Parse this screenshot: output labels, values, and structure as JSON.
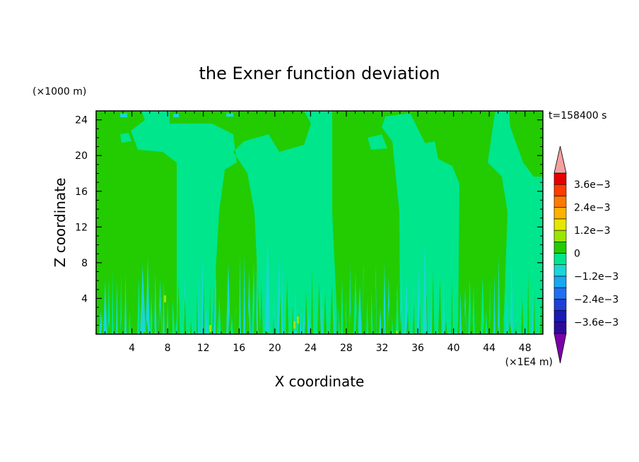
{
  "chart_data": {
    "type": "heatmap",
    "title": "the Exner function deviation",
    "xlabel": "X coordinate",
    "ylabel": "Z coordinate",
    "x_units": "(×1E4 m)",
    "y_units": "(×1000 m)",
    "time_label": "t=158400 s",
    "xlim": [
      0,
      50
    ],
    "ylim": [
      0,
      25
    ],
    "x_ticks": [
      4,
      8,
      12,
      16,
      20,
      24,
      28,
      32,
      36,
      40,
      44,
      48
    ],
    "y_ticks": [
      4,
      8,
      12,
      16,
      20,
      24
    ],
    "colorbar": {
      "levels": [
        -0.0036,
        -0.003,
        -0.0024,
        -0.0018,
        -0.0012,
        -0.0006,
        0,
        0.0006,
        0.0012,
        0.0018,
        0.0024,
        0.003,
        0.0036
      ],
      "colors": [
        "#7a00a8",
        "#2e0a9c",
        "#1a1ab4",
        "#1f3fd8",
        "#1f70f0",
        "#1aa6f0",
        "#1ad6d6",
        "#00e68c",
        "#22cc00",
        "#99e600",
        "#e6e600",
        "#ffb000",
        "#ff7a00",
        "#ff3c00",
        "#e60000",
        "#f5a0a0"
      ],
      "label_values": [
        0.0036,
        0.0024,
        0.0012,
        0,
        -0.0012,
        -0.0024,
        -0.0036
      ],
      "labels": [
        "3.6e−3",
        "2.4e−3",
        "1.2e−3",
        "0",
        "−1.2e−3",
        "−2.4e−3",
        "−3.6e−3"
      ]
    },
    "fields": {
      "background": "#00e68c",
      "positive_small": "#22cc00",
      "negative_small": "#1ad6d6",
      "positive_medium": "#99e600"
    }
  }
}
